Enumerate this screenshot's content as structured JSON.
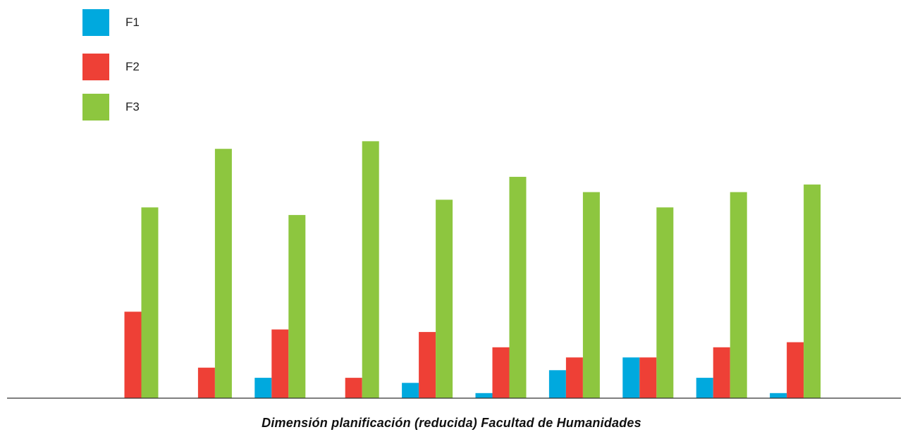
{
  "chart_data": {
    "type": "bar",
    "title": "",
    "xlabel": "Dimensión planificación (reducida) Facultad de Humanidades",
    "ylabel": "",
    "categories": [
      "",
      "",
      "",
      "",
      "",
      "",
      "",
      "",
      "",
      ""
    ],
    "ylim": [
      0,
      100
    ],
    "grid": false,
    "legend_position": "top-left",
    "series": [
      {
        "name": "F1",
        "color": "#00A9DE",
        "values": [
          0,
          0,
          8,
          0,
          6,
          2,
          11,
          16,
          8,
          2
        ]
      },
      {
        "name": "F2",
        "color": "#EE4036",
        "values": [
          34,
          12,
          27,
          8,
          26,
          20,
          16,
          16,
          20,
          22
        ]
      },
      {
        "name": "F3",
        "color": "#8DC63F",
        "values": [
          75,
          98,
          72,
          101,
          78,
          87,
          81,
          75,
          81,
          84
        ]
      }
    ]
  }
}
